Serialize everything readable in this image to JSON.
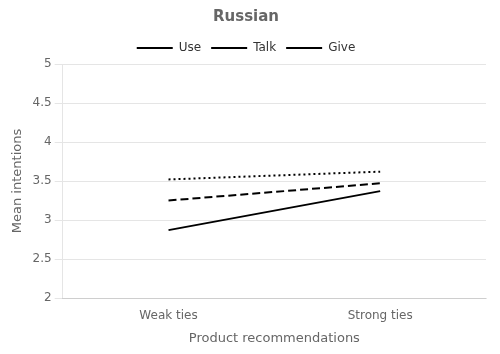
{
  "chart_data": {
    "type": "line",
    "title": "Russian",
    "x_label": "Product recommendations",
    "y_label": "Mean intentions",
    "categories": [
      "Weak ties",
      "Strong ties"
    ],
    "series": [
      {
        "name": "Use",
        "color": "#000000",
        "line_style": "dotted",
        "values": [
          3.52,
          3.62
        ]
      },
      {
        "name": "Talk",
        "color": "#000000",
        "line_style": "dashed",
        "values": [
          3.25,
          3.47
        ]
      },
      {
        "name": "Give",
        "color": "#000000",
        "line_style": "solid",
        "values": [
          2.87,
          3.37
        ]
      }
    ],
    "ylim": [
      2,
      5
    ],
    "yticks": [
      2,
      2.5,
      3,
      3.5,
      4,
      4.5,
      5
    ],
    "grid": "y",
    "legend": "top"
  }
}
